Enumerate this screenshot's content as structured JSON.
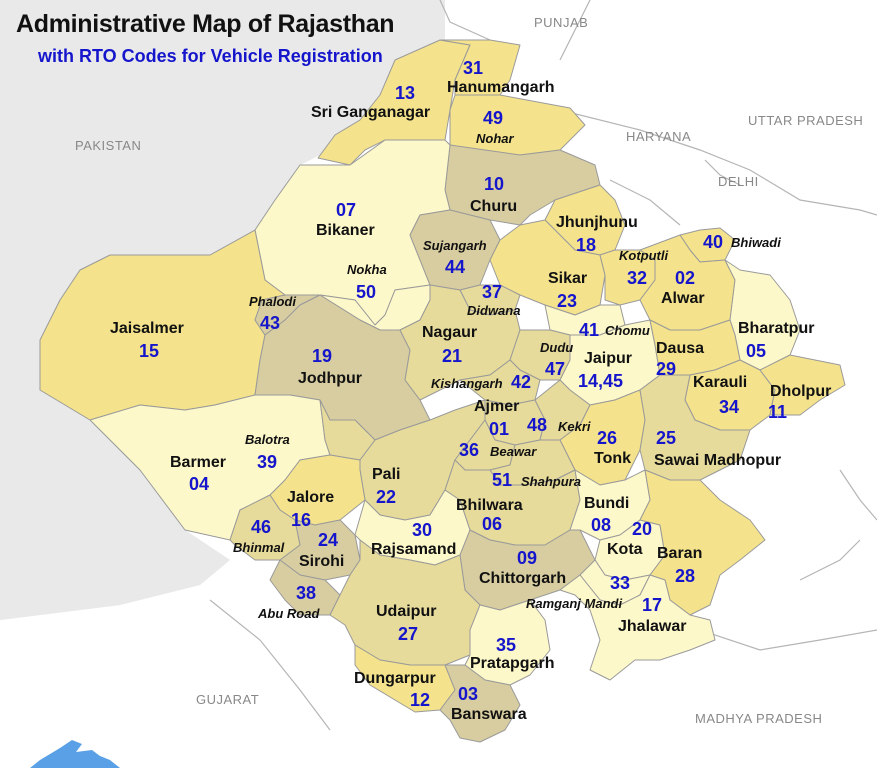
{
  "title": "Administrative Map of Rajasthan",
  "subtitle": "with RTO Codes for Vehicle Registration",
  "colors": {
    "background": "#e9e9ea",
    "neighbor_land": "#ffffff",
    "border": "#9a9a9a",
    "light_yellow": "#fdf8c9",
    "yellow": "#f4e38c",
    "khaki": "#e6db9a",
    "tan": "#d8cda0",
    "code_text": "#1515cc",
    "water": "#5aa0e6"
  },
  "neighbors": {
    "punjab": "PUNJAB",
    "haryana": "HARYANA",
    "uttar_pradesh": "UTTAR PRADESH",
    "delhi": "DELHI",
    "pakistan": "PAKISTAN",
    "gujarat": "GUJARAT",
    "madhya_pradesh": "MADHYA PRADESH"
  },
  "districts": {
    "sriganganagar": {
      "name": "Sri Ganganagar",
      "code": "13"
    },
    "hanumangarh": {
      "name": "Hanumangarh",
      "code": "31"
    },
    "nohar": {
      "name": "Nohar",
      "code": "49"
    },
    "churu": {
      "name": "Churu",
      "code": "10"
    },
    "bikaner": {
      "name": "Bikaner",
      "code": "07"
    },
    "sujangarh": {
      "name": "Sujangarh",
      "code": "44"
    },
    "nokha": {
      "name": "Nokha",
      "code": "50"
    },
    "jhunjhunu": {
      "name": "Jhunjhunu",
      "code": "18"
    },
    "kotputli": {
      "name": "Kotputli",
      "code": "32"
    },
    "bhiwadi": {
      "name": "Bhiwadi",
      "code": "40"
    },
    "alwar": {
      "name": "Alwar",
      "code": "02"
    },
    "sikar": {
      "name": "Sikar",
      "code": "23"
    },
    "jaisalmer": {
      "name": "Jaisalmer",
      "code": "15"
    },
    "phalodi": {
      "name": "Phalodi",
      "code": "43"
    },
    "didwana": {
      "name": "Didwana",
      "code": "37"
    },
    "nagaur": {
      "name": "Nagaur",
      "code": "21"
    },
    "chomu": {
      "name": "Chomu",
      "code": "41"
    },
    "bharatpur": {
      "name": "Bharatpur",
      "code": "05"
    },
    "jodhpur": {
      "name": "Jodhpur",
      "code": "19"
    },
    "dudu": {
      "name": "Dudu",
      "code": "47"
    },
    "jaipur": {
      "name": "Jaipur",
      "code": "14,45"
    },
    "dausa": {
      "name": "Dausa",
      "code": "29"
    },
    "kishangarh": {
      "name": "Kishangarh",
      "code": "42"
    },
    "karauli": {
      "name": "Karauli",
      "code": "34"
    },
    "dholpur": {
      "name": "Dholpur",
      "code": "11"
    },
    "ajmer": {
      "name": "Ajmer",
      "code": "01"
    },
    "kekri": {
      "name": "Kekri",
      "code": "48"
    },
    "barmer": {
      "name": "Barmer",
      "code": "04"
    },
    "balotra": {
      "name": "Balotra",
      "code": "39"
    },
    "tonk": {
      "name": "Tonk",
      "code": "26"
    },
    "sawai_madhopur": {
      "name": "Sawai Madhopur",
      "code": "25"
    },
    "beawar": {
      "name": "Beawar",
      "code": "36"
    },
    "pali": {
      "name": "Pali",
      "code": "22"
    },
    "shahpura": {
      "name": "Shahpura",
      "code": "51"
    },
    "jalore": {
      "name": "Jalore",
      "code": "16"
    },
    "bhilwara": {
      "name": "Bhilwara",
      "code": "06"
    },
    "bundi": {
      "name": "Bundi",
      "code": "08"
    },
    "bhinmal": {
      "name": "Bhinmal",
      "code": "46"
    },
    "rajsamand": {
      "name": "Rajsamand",
      "code": "30"
    },
    "kota": {
      "name": "Kota",
      "code": "20"
    },
    "sirohi": {
      "name": "Sirohi",
      "code": "24"
    },
    "baran": {
      "name": "Baran",
      "code": "28"
    },
    "chittorgarh": {
      "name": "Chittorgarh",
      "code": "09"
    },
    "ramganj_mandi": {
      "name": "Ramganj Mandi",
      "code": "33"
    },
    "abu_road": {
      "name": "Abu Road",
      "code": "38"
    },
    "jhalawar": {
      "name": "Jhalawar",
      "code": "17"
    },
    "udaipur": {
      "name": "Udaipur",
      "code": "27"
    },
    "pratapgarh": {
      "name": "Pratapgarh",
      "code": "35"
    },
    "dungarpur": {
      "name": "Dungarpur",
      "code": "12"
    },
    "banswara": {
      "name": "Banswara",
      "code": "03"
    }
  }
}
